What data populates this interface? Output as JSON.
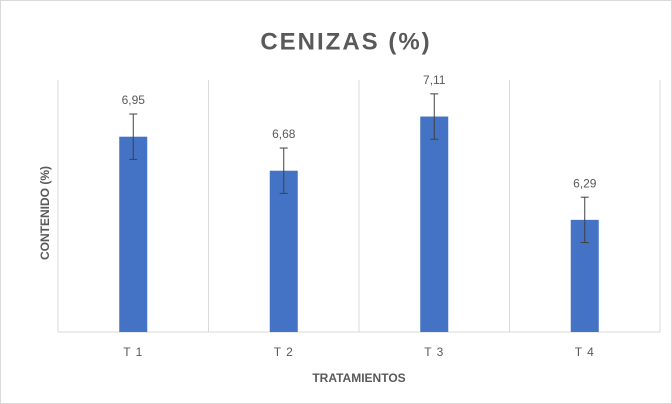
{
  "chart_data": {
    "type": "bar",
    "title": "CENIZAS (%)",
    "x_label": "TRATAMIENTOS",
    "y_label": "CONTENIDO (%)",
    "categories": [
      "T 1",
      "T 2",
      "T 3",
      "T 4"
    ],
    "values": [
      6.95,
      6.68,
      7.11,
      6.29
    ],
    "value_labels": [
      "6,95",
      "6,68",
      "7,11",
      "6,29"
    ],
    "errors": [
      0.18,
      0.18,
      0.18,
      0.18
    ],
    "color": "#4472c4",
    "ylim": [
      5.4,
      7.4
    ],
    "grid": true
  }
}
